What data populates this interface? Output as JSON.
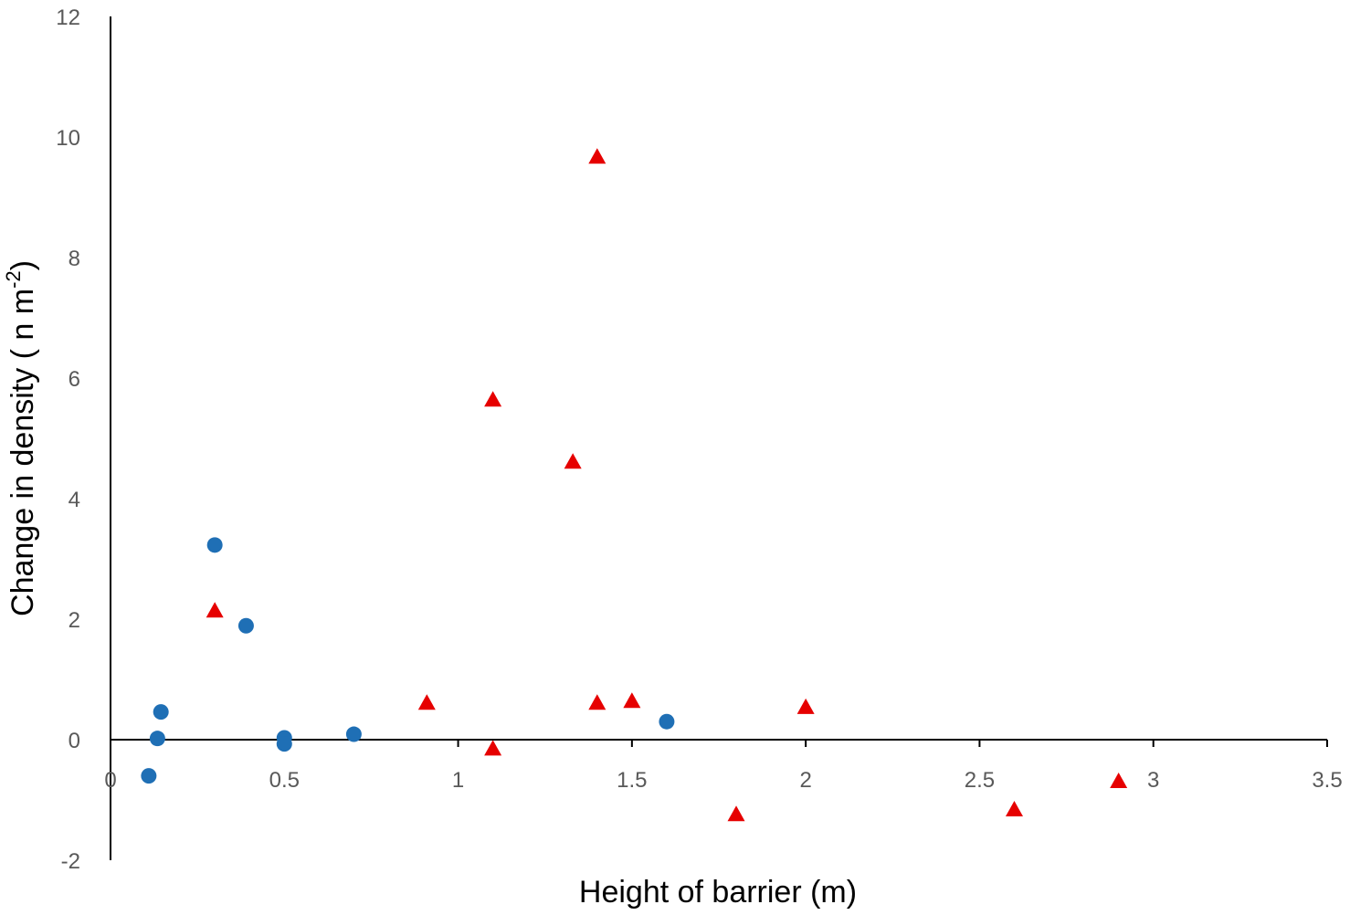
{
  "chart_data": {
    "type": "scatter",
    "title": "",
    "xlabel": "Height of barrier (m)",
    "ylabel_main": "Change in density ( n m",
    "ylabel_sup": "-2",
    "ylabel_close": ")",
    "xlim": [
      0,
      3.5
    ],
    "ylim": [
      -2,
      12
    ],
    "x_ticks": [
      0,
      0.5,
      1,
      1.5,
      2,
      2.5,
      3,
      3.5
    ],
    "x_tick_labels": [
      "0",
      "0.5",
      "1",
      "1.5",
      "2",
      "2.5",
      "3",
      "3.5"
    ],
    "y_ticks": [
      -2,
      0,
      2,
      4,
      6,
      8,
      10,
      12
    ],
    "y_tick_labels": [
      "-2",
      "0",
      "2",
      "4",
      "6",
      "8",
      "10",
      "12"
    ],
    "grid": false,
    "legend": "none",
    "series": [
      {
        "marker": "circle",
        "color": "#1f6fb5",
        "points": [
          [
            0.11,
            -0.6
          ],
          [
            0.135,
            0.02
          ],
          [
            0.145,
            0.46
          ],
          [
            0.3,
            3.23
          ],
          [
            0.39,
            1.89
          ],
          [
            0.5,
            0.03
          ],
          [
            0.5,
            -0.07
          ],
          [
            0.7,
            0.09
          ],
          [
            1.6,
            0.3
          ]
        ]
      },
      {
        "marker": "triangle",
        "color": "#e60000",
        "points": [
          [
            0.3,
            2.13
          ],
          [
            0.91,
            0.6
          ],
          [
            1.1,
            5.63
          ],
          [
            1.1,
            -0.16
          ],
          [
            1.33,
            4.6
          ],
          [
            1.4,
            9.66
          ],
          [
            1.4,
            0.6
          ],
          [
            1.5,
            0.63
          ],
          [
            1.8,
            -1.25
          ],
          [
            2.0,
            0.53
          ],
          [
            2.6,
            -1.17
          ],
          [
            2.9,
            -0.7
          ]
        ]
      }
    ]
  }
}
